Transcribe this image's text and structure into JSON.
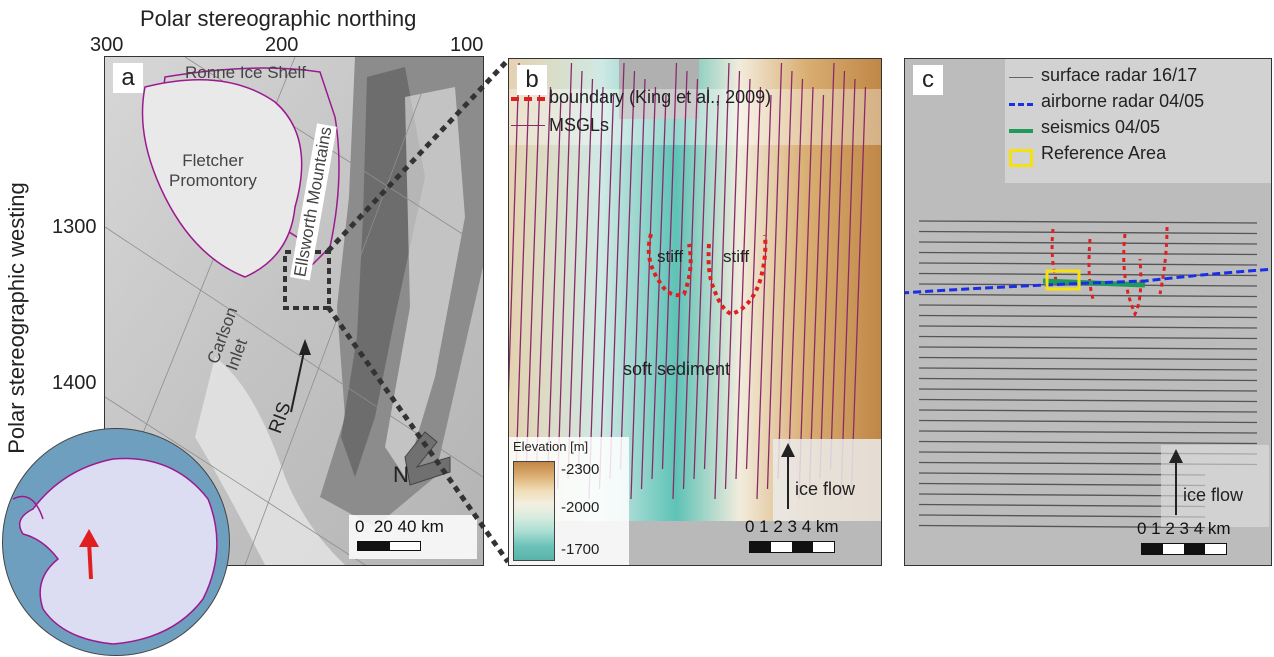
{
  "axes": {
    "top_title": "Polar stereographic northing",
    "left_title": "Polar stereographic westing",
    "northing_ticks": [
      "300",
      "200",
      "100"
    ],
    "westing_ticks": [
      "1300",
      "1400"
    ]
  },
  "panel_a": {
    "letter": "a",
    "labels": {
      "ronne": "Ronne Ice Shelf",
      "fletcher": "Fletcher\nPromontory",
      "ellsworth": "Ellsworth Mountains",
      "carlson": "Carlson\nInlet",
      "ris": "RIS",
      "north": "N"
    },
    "scalebar": "0  20 40 km"
  },
  "panel_b": {
    "letter": "b",
    "legend": {
      "boundary": "boundary (King et al., 2009)",
      "msgls": "MSGLs"
    },
    "labels": {
      "stiff_left": "stiff",
      "stiff_right": "stiff",
      "soft": "soft sediment",
      "ice_flow": "ice flow"
    },
    "colorbar": {
      "title": "Elevation [m]",
      "ticks": [
        "-2300",
        "-2000",
        "-1700"
      ]
    },
    "scalebar": "0 1 2 3 4 km"
  },
  "panel_c": {
    "letter": "c",
    "legend": {
      "surface": "surface radar 16/17",
      "airborne": "airborne radar 04/05",
      "seismics": "seismics 04/05",
      "reference": "Reference Area"
    },
    "labels": {
      "ice_flow": "ice flow"
    },
    "scalebar": "0 1 2 3 4 km"
  },
  "colors": {
    "boundary": "#e02020",
    "msgl": "#8b2a6b",
    "airborne": "#1a2ee6",
    "seismics": "#1f9a5a",
    "reference": "#f5e010",
    "outline": "#9b1a8f"
  }
}
